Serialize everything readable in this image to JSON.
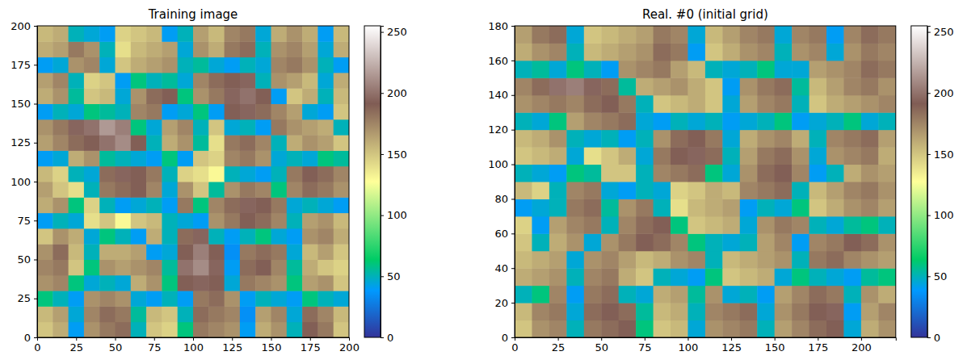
{
  "chart_data": [
    {
      "type": "heatmap",
      "title": "Training image",
      "color": "terrain",
      "x": [
        5,
        15,
        25,
        35,
        45,
        55,
        65,
        75,
        85,
        95,
        105,
        115,
        125,
        135,
        145,
        155,
        165,
        175,
        185,
        195
      ],
      "y": [
        5,
        15,
        25,
        35,
        45,
        55,
        65,
        75,
        85,
        95,
        105,
        115,
        125,
        135,
        145,
        155,
        165,
        175,
        185,
        195
      ],
      "xlim": [
        0,
        200
      ],
      "ylim": [
        0,
        200
      ],
      "xticks": [
        0,
        25,
        50,
        75,
        100,
        125,
        150,
        175,
        200
      ],
      "yticks": [
        0,
        25,
        50,
        75,
        100,
        125,
        150,
        175,
        200
      ],
      "colorbar": {
        "lim": [
          0,
          255
        ],
        "ticks": [
          0,
          50,
          100,
          150,
          200,
          250
        ]
      },
      "values": [
        [
          150,
          160,
          40,
          170,
          180,
          185,
          50,
          150,
          145,
          60,
          180,
          175,
          170,
          40,
          160,
          170,
          50,
          190,
          180,
          150
        ],
        [
          155,
          165,
          45,
          175,
          185,
          180,
          55,
          155,
          150,
          50,
          185,
          180,
          175,
          35,
          165,
          175,
          45,
          185,
          175,
          155
        ],
        [
          60,
          50,
          40,
          170,
          175,
          170,
          45,
          40,
          50,
          40,
          180,
          185,
          170,
          40,
          50,
          45,
          40,
          60,
          50,
          45
        ],
        [
          170,
          175,
          60,
          45,
          50,
          45,
          160,
          170,
          60,
          190,
          195,
          190,
          45,
          180,
          175,
          170,
          60,
          165,
          170,
          150
        ],
        [
          175,
          180,
          150,
          60,
          170,
          165,
          170,
          175,
          55,
          200,
          210,
          195,
          40,
          185,
          190,
          175,
          55,
          160,
          150,
          145
        ],
        [
          170,
          185,
          155,
          50,
          160,
          160,
          165,
          40,
          45,
          190,
          205,
          190,
          35,
          180,
          185,
          180,
          45,
          155,
          165,
          150
        ],
        [
          150,
          170,
          160,
          45,
          60,
          50,
          40,
          160,
          50,
          185,
          195,
          50,
          40,
          50,
          60,
          45,
          40,
          170,
          175,
          160
        ],
        [
          40,
          50,
          45,
          140,
          150,
          130,
          150,
          155,
          50,
          45,
          40,
          170,
          180,
          190,
          185,
          175,
          50,
          165,
          170,
          155
        ],
        [
          160,
          170,
          60,
          145,
          50,
          40,
          45,
          50,
          40,
          180,
          60,
          175,
          185,
          195,
          190,
          180,
          45,
          50,
          45,
          40
        ],
        [
          165,
          150,
          140,
          50,
          180,
          185,
          190,
          175,
          45,
          170,
          150,
          55,
          170,
          180,
          175,
          60,
          175,
          185,
          180,
          170
        ],
        [
          155,
          145,
          50,
          45,
          185,
          195,
          190,
          180,
          50,
          145,
          140,
          130,
          50,
          45,
          40,
          50,
          180,
          190,
          185,
          175
        ],
        [
          40,
          45,
          160,
          170,
          55,
          50,
          45,
          40,
          60,
          40,
          150,
          145,
          175,
          180,
          170,
          45,
          50,
          45,
          60,
          55
        ],
        [
          165,
          175,
          185,
          190,
          200,
          210,
          190,
          50,
          160,
          170,
          55,
          140,
          180,
          185,
          175,
          50,
          160,
          170,
          165,
          150
        ],
        [
          170,
          180,
          195,
          200,
          215,
          205,
          60,
          45,
          165,
          175,
          50,
          150,
          45,
          50,
          40,
          180,
          170,
          165,
          160,
          50
        ],
        [
          40,
          50,
          45,
          60,
          55,
          50,
          175,
          180,
          40,
          45,
          60,
          40,
          190,
          195,
          185,
          175,
          165,
          45,
          40,
          150
        ],
        [
          160,
          170,
          55,
          150,
          155,
          45,
          170,
          185,
          190,
          60,
          170,
          180,
          195,
          200,
          190,
          40,
          150,
          160,
          50,
          155
        ],
        [
          165,
          175,
          50,
          145,
          150,
          40,
          60,
          50,
          55,
          45,
          175,
          185,
          190,
          195,
          50,
          170,
          165,
          155,
          45,
          160
        ],
        [
          40,
          45,
          170,
          175,
          45,
          150,
          160,
          165,
          170,
          50,
          55,
          45,
          40,
          50,
          45,
          175,
          180,
          170,
          50,
          40
        ],
        [
          160,
          165,
          180,
          170,
          50,
          140,
          155,
          160,
          165,
          45,
          170,
          160,
          180,
          185,
          50,
          170,
          175,
          165,
          45,
          160
        ],
        [
          155,
          160,
          50,
          45,
          40,
          145,
          150,
          155,
          40,
          50,
          165,
          155,
          175,
          180,
          45,
          160,
          170,
          160,
          40,
          155
        ]
      ]
    },
    {
      "type": "heatmap",
      "title": "Real. #0 (initial grid)",
      "color": "terrain",
      "x": [
        5,
        15,
        25,
        35,
        45,
        55,
        65,
        75,
        85,
        95,
        105,
        115,
        125,
        135,
        145,
        155,
        165,
        175,
        185,
        195,
        205,
        215
      ],
      "y": [
        5,
        15,
        25,
        35,
        45,
        55,
        65,
        75,
        85,
        95,
        105,
        115,
        125,
        135,
        145,
        155,
        165,
        175
      ],
      "xlim": [
        0,
        220
      ],
      "ylim": [
        0,
        180
      ],
      "xticks": [
        0,
        25,
        50,
        75,
        100,
        125,
        150,
        175,
        200
      ],
      "yticks": [
        0,
        20,
        40,
        60,
        80,
        100,
        120,
        140,
        160,
        180
      ],
      "colorbar": {
        "lim": [
          0,
          255
        ],
        "ticks": [
          0,
          50,
          100,
          150,
          200,
          250
        ]
      },
      "values": [
        [
          150,
          170,
          175,
          50,
          180,
          185,
          190,
          60,
          150,
          155,
          45,
          170,
          175,
          180,
          50,
          165,
          175,
          185,
          190,
          45,
          160,
          170
        ],
        [
          155,
          175,
          180,
          45,
          185,
          190,
          185,
          55,
          155,
          160,
          50,
          175,
          180,
          185,
          45,
          170,
          180,
          190,
          195,
          40,
          165,
          175
        ],
        [
          50,
          60,
          175,
          40,
          180,
          185,
          50,
          45,
          160,
          165,
          55,
          170,
          45,
          50,
          40,
          165,
          175,
          185,
          180,
          50,
          170,
          160
        ],
        [
          160,
          165,
          170,
          50,
          175,
          180,
          160,
          150,
          50,
          45,
          40,
          60,
          150,
          155,
          160,
          45,
          60,
          50,
          45,
          40,
          55,
          60
        ],
        [
          155,
          160,
          165,
          45,
          170,
          175,
          165,
          155,
          160,
          170,
          175,
          50,
          155,
          160,
          165,
          170,
          50,
          180,
          185,
          175,
          170,
          165
        ],
        [
          150,
          50,
          160,
          170,
          45,
          170,
          180,
          190,
          185,
          175,
          60,
          50,
          45,
          50,
          165,
          175,
          40,
          175,
          180,
          190,
          185,
          170
        ],
        [
          145,
          40,
          165,
          175,
          180,
          50,
          175,
          185,
          190,
          60,
          150,
          155,
          160,
          45,
          170,
          180,
          175,
          50,
          45,
          55,
          60,
          50
        ],
        [
          40,
          45,
          50,
          180,
          185,
          55,
          170,
          180,
          50,
          140,
          155,
          160,
          165,
          40,
          50,
          45,
          60,
          150,
          160,
          170,
          175,
          165
        ],
        [
          155,
          145,
          50,
          175,
          180,
          45,
          40,
          50,
          45,
          145,
          150,
          160,
          155,
          175,
          180,
          185,
          50,
          155,
          165,
          175,
          180,
          170
        ],
        [
          50,
          45,
          40,
          60,
          55,
          150,
          150,
          50,
          175,
          180,
          185,
          60,
          45,
          170,
          185,
          190,
          175,
          40,
          50,
          160,
          170,
          165
        ],
        [
          150,
          155,
          160,
          45,
          140,
          150,
          160,
          45,
          180,
          190,
          195,
          185,
          50,
          165,
          180,
          185,
          170,
          45,
          170,
          175,
          180,
          160
        ],
        [
          155,
          160,
          170,
          50,
          45,
          50,
          40,
          50,
          170,
          185,
          190,
          180,
          45,
          160,
          170,
          175,
          160,
          50,
          175,
          180,
          185,
          165
        ],
        [
          50,
          45,
          60,
          165,
          175,
          180,
          185,
          45,
          40,
          50,
          45,
          50,
          40,
          45,
          50,
          60,
          40,
          45,
          50,
          60,
          45,
          50
        ],
        [
          170,
          175,
          180,
          175,
          185,
          190,
          180,
          50,
          150,
          155,
          160,
          150,
          45,
          165,
          175,
          180,
          50,
          150,
          160,
          165,
          170,
          175
        ],
        [
          175,
          185,
          200,
          205,
          195,
          185,
          55,
          160,
          165,
          170,
          160,
          150,
          40,
          170,
          180,
          185,
          55,
          155,
          165,
          175,
          180,
          170
        ],
        [
          50,
          55,
          45,
          60,
          50,
          40,
          170,
          175,
          180,
          165,
          155,
          50,
          45,
          50,
          60,
          45,
          45,
          165,
          170,
          175,
          185,
          180
        ],
        [
          160,
          170,
          175,
          50,
          155,
          160,
          165,
          170,
          185,
          180,
          40,
          150,
          160,
          170,
          175,
          50,
          170,
          175,
          45,
          170,
          180,
          175
        ],
        [
          165,
          180,
          185,
          45,
          150,
          155,
          160,
          165,
          180,
          175,
          45,
          155,
          165,
          175,
          180,
          45,
          175,
          180,
          40,
          175,
          185,
          180
        ]
      ]
    }
  ]
}
